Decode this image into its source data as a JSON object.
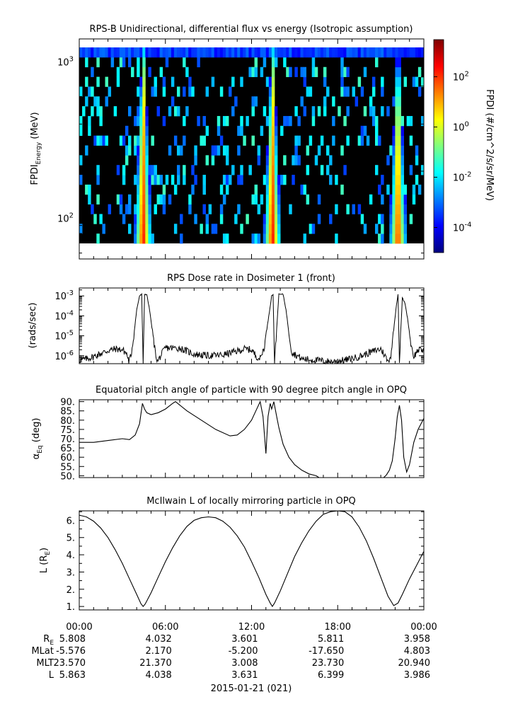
{
  "figure": {
    "date_label": "2015-01-21 (021)",
    "ephemeris": {
      "time_ticks": [
        "00:00",
        "06:00",
        "12:00",
        "18:00",
        "00:00"
      ],
      "rows": [
        {
          "label_main": "R",
          "label_sub": "E",
          "values": [
            "5.808",
            "4.032",
            "3.601",
            "5.811",
            "3.958"
          ]
        },
        {
          "label_main": "MLat",
          "label_sub": "",
          "values": [
            "-5.576",
            "2.170",
            "-5.200",
            "-17.650",
            "4.803"
          ]
        },
        {
          "label_main": "MLT",
          "label_sub": "",
          "values": [
            "23.570",
            "21.370",
            "3.008",
            "23.730",
            "20.940"
          ]
        },
        {
          "label_main": "L",
          "label_sub": "",
          "values": [
            "5.863",
            "4.038",
            "3.631",
            "6.399",
            "3.986"
          ]
        }
      ]
    }
  },
  "chart_data": [
    {
      "type": "heatmap",
      "title": "RPS-B  Unidirectional, differential flux vs energy (Isotropic assumption)",
      "ylabel_main": "FPDI",
      "ylabel_sub": "Energy",
      "ylabel_unit": " (MeV)",
      "ylog": true,
      "ylim": [
        55,
        1400
      ],
      "yticks": [
        {
          "value": 100,
          "base": "10",
          "exp": "2"
        },
        {
          "value": 1000,
          "base": "10",
          "exp": "3"
        }
      ],
      "xlim_hours": [
        0,
        24
      ],
      "colorbar": {
        "label": "FPDI (#/cm^2/s/sr/MeV)",
        "log": true,
        "range": [
          1e-05,
          3000
        ],
        "ticks": [
          {
            "value": 0.0001,
            "base": "10",
            "exp": "-4"
          },
          {
            "value": 0.01,
            "base": "10",
            "exp": "-2"
          },
          {
            "value": 1,
            "base": "10",
            "exp": "0"
          },
          {
            "value": 100,
            "base": "10",
            "exp": "2"
          }
        ],
        "colors": [
          "#00007f",
          "#0000ff",
          "#007fff",
          "#00ffff",
          "#7fff7f",
          "#ffff00",
          "#ff7f00",
          "#ff0000",
          "#7f0000"
        ]
      },
      "energy_channels": 20,
      "time_bins": 120,
      "belt_passes": [
        {
          "center_hour": 4.45,
          "peak_log_flux": 2.6
        },
        {
          "center_hour": 13.45,
          "peak_log_flux": 2.6
        },
        {
          "center_hour": 22.2,
          "peak_log_flux": 2.3
        }
      ]
    },
    {
      "type": "line",
      "title": "RPS  Dose rate in Dosimeter 1 (front)",
      "ylabel": "(rads/sec)",
      "ylog": true,
      "ylim": [
        4e-07,
        0.0025
      ],
      "yticks": [
        {
          "value": 1e-06,
          "base": "10",
          "exp": "-6"
        },
        {
          "value": 1e-05,
          "base": "10",
          "exp": "-5"
        },
        {
          "value": 0.0001,
          "base": "10",
          "exp": "-4"
        },
        {
          "value": 0.001,
          "base": "10",
          "exp": "-3"
        }
      ],
      "xlim_hours": [
        0,
        24
      ],
      "series": [
        {
          "x": [
            0,
            0.5,
            1.0,
            1.5,
            2.0,
            2.5,
            3.0,
            3.3,
            3.45,
            3.6,
            3.8,
            4.0,
            4.2,
            4.35,
            4.45,
            4.55,
            4.7,
            4.9,
            5.1,
            5.3,
            5.45,
            5.6,
            6.0,
            7.0,
            8.0,
            9.0,
            10.0,
            11.0,
            11.5,
            12.0,
            12.3,
            12.6,
            12.9,
            13.2,
            13.4,
            13.5,
            13.6,
            13.9,
            14.2,
            14.4,
            14.6,
            14.8,
            15.5,
            16.5,
            17.5,
            18.5,
            19.5,
            20.5,
            21.0,
            21.3,
            21.5,
            21.7,
            21.9,
            22.1,
            22.2,
            22.3,
            22.5,
            22.7,
            22.9,
            23.1,
            23.3,
            23.6,
            24.0
          ],
          "y": [
            6e-07,
            7e-07,
            9e-07,
            1.3e-06,
            1.8e-06,
            2.2e-06,
            2e-06,
            1.3e-06,
            5e-07,
            1e-06,
            1e-05,
            0.0002,
            0.001,
            0.0012,
            4e-07,
            0.0012,
            0.0012,
            0.0002,
            1.5e-05,
            1.5e-06,
            5e-07,
            8e-07,
            2.5e-06,
            2.4e-06,
            1.2e-06,
            1e-06,
            1.1e-06,
            1.7e-06,
            2.2e-06,
            2e-06,
            1e-06,
            7e-07,
            3e-06,
            0.0001,
            0.001,
            0.0012,
            4e-07,
            0.0012,
            0.0012,
            0.0002,
            1.5e-05,
            1.5e-06,
            7e-07,
            6e-07,
            5e-07,
            6e-07,
            9e-07,
            1.7e-06,
            2.2e-06,
            1e-06,
            5e-07,
            1e-06,
            2e-05,
            0.0004,
            0.0012,
            5e-07,
            0.0008,
            0.0004,
            5e-05,
            4e-06,
            9e-07,
            2e-06,
            1.8e-06
          ]
        }
      ]
    },
    {
      "type": "line",
      "title": "Equatorial pitch angle of particle with 90 degree pitch angle in OPQ",
      "ylabel_main": "α",
      "ylabel_sub": "Eq",
      "ylabel_unit": " (deg)",
      "ylim": [
        49,
        91
      ],
      "yticks": [
        50,
        55,
        60,
        65,
        70,
        75,
        80,
        85,
        90
      ],
      "xlim_hours": [
        0,
        24
      ],
      "series": [
        {
          "x": [
            0,
            1.0,
            2.0,
            3.0,
            3.5,
            3.9,
            4.2,
            4.4,
            4.55,
            4.7,
            5.0,
            5.5,
            6.0,
            6.5,
            6.7,
            7.5,
            8.5,
            9.5,
            10.5,
            11.0,
            11.5,
            12.0,
            12.3,
            12.6,
            12.8,
            13.0,
            13.15,
            13.3,
            13.4,
            13.55,
            13.75,
            13.9,
            14.2,
            14.6,
            15.0,
            15.5,
            16.0,
            16.5,
            16.7
          ],
          "y": [
            68,
            68,
            69,
            70,
            69.5,
            72,
            78,
            89,
            86,
            84,
            83,
            84,
            86,
            89,
            90,
            85,
            80,
            75,
            71.5,
            72,
            75,
            80,
            85,
            90,
            82,
            62,
            82,
            89,
            86,
            90,
            82,
            76,
            67,
            60,
            56,
            53,
            51,
            50,
            49
          ]
        },
        {
          "x": [
            21.2,
            21.4,
            21.6,
            21.8,
            22.0,
            22.15,
            22.3,
            22.45,
            22.6,
            22.8,
            23.0,
            23.3,
            23.6,
            24.0
          ],
          "y": [
            49,
            50.5,
            53,
            58,
            70,
            82,
            88,
            80,
            60,
            52,
            56,
            68,
            75,
            81
          ]
        }
      ]
    },
    {
      "type": "line",
      "title": "McIlwain L of locally mirroring particle in OPQ",
      "ylabel_main": "L (R",
      "ylabel_sub": "E",
      "ylabel_unit": ")",
      "ylim": [
        0.8,
        6.55
      ],
      "yticks": [
        1,
        2,
        3,
        4,
        5,
        6
      ],
      "xlim_hours": [
        0,
        24
      ],
      "series": [
        {
          "x": [
            0,
            0.5,
            1.0,
            1.5,
            2.0,
            2.5,
            3.0,
            3.5,
            4.0,
            4.3,
            4.45,
            4.6,
            5.0,
            5.5,
            6.0,
            6.5,
            7.0,
            7.5,
            8.0,
            8.5,
            9.0,
            9.5,
            10.0,
            10.5,
            11.0,
            11.5,
            12.0,
            12.5,
            13.0,
            13.3,
            13.45,
            13.6,
            14.0,
            14.5,
            15.0,
            15.5,
            16.0,
            16.5,
            17.0,
            17.5,
            18.0,
            18.5,
            19.0,
            19.5,
            20.0,
            20.5,
            21.0,
            21.5,
            21.9,
            22.2,
            22.5,
            23.0,
            23.5,
            24.0
          ],
          "y": [
            6.3,
            6.2,
            5.95,
            5.55,
            5.0,
            4.3,
            3.5,
            2.6,
            1.7,
            1.15,
            1.0,
            1.15,
            1.8,
            2.7,
            3.6,
            4.4,
            5.1,
            5.65,
            6.0,
            6.15,
            6.2,
            6.15,
            5.95,
            5.6,
            5.1,
            4.45,
            3.6,
            2.7,
            1.7,
            1.2,
            1.0,
            1.2,
            1.9,
            2.9,
            3.9,
            4.7,
            5.4,
            5.95,
            6.35,
            6.5,
            6.55,
            6.5,
            6.2,
            5.6,
            4.8,
            3.8,
            2.7,
            1.6,
            1.05,
            1.2,
            1.7,
            2.6,
            3.4,
            4.2
          ]
        }
      ]
    }
  ]
}
